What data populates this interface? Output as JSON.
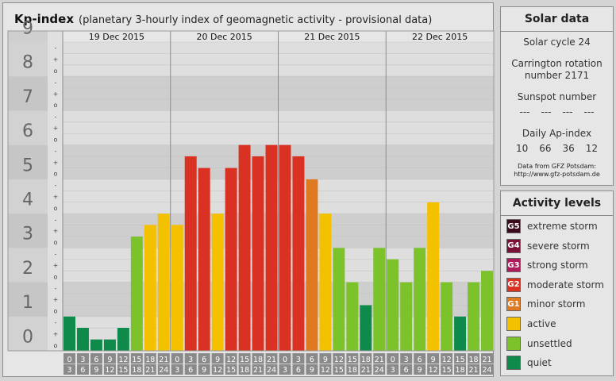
{
  "header": {
    "title": "Kp-index",
    "subtitle": "(planetary 3-hourly index of geomagnetic activity - provisional data)"
  },
  "chart_data": {
    "type": "bar",
    "ylim": [
      0,
      9
    ],
    "y_major_ticks": [
      "0",
      "1",
      "2",
      "3",
      "4",
      "5",
      "6",
      "7",
      "8",
      "9"
    ],
    "y_minor_ticks": [
      "o",
      "+",
      "-"
    ],
    "days": [
      "19 Dec 2015",
      "20 Dec 2015",
      "21 Dec 2015",
      "22 Dec 2015"
    ],
    "interval_labels": [
      [
        "0",
        "3"
      ],
      [
        "3",
        "6"
      ],
      [
        "6",
        "9"
      ],
      [
        "9",
        "12"
      ],
      [
        "12",
        "15"
      ],
      [
        "15",
        "18"
      ],
      [
        "18",
        "21"
      ],
      [
        "21",
        "24"
      ]
    ],
    "values": [
      1.0,
      0.67,
      0.33,
      0.33,
      0.67,
      3.33,
      3.67,
      4.0,
      3.67,
      5.67,
      5.33,
      4.0,
      5.33,
      6.0,
      5.67,
      6.0,
      6.0,
      5.67,
      5.0,
      4.0,
      3.0,
      2.0,
      1.33,
      3.0,
      2.67,
      2.0,
      3.0,
      4.33,
      2.0,
      1.0,
      2.0,
      2.33
    ],
    "bar_colors": [
      "#0e8a4a",
      "#0e8a4a",
      "#0e8a4a",
      "#0e8a4a",
      "#0e8a4a",
      "#7cc22b",
      "#f4c100",
      "#f4c100",
      "#f4c100",
      "#d93222",
      "#d93222",
      "#f4c100",
      "#d93222",
      "#d93222",
      "#d93222",
      "#d93222",
      "#d93222",
      "#d93222",
      "#e07a22",
      "#f4c100",
      "#7cc22b",
      "#7cc22b",
      "#0e8a4a",
      "#7cc22b",
      "#7cc22b",
      "#7cc22b",
      "#7cc22b",
      "#f4c100",
      "#7cc22b",
      "#0e8a4a",
      "#7cc22b",
      "#7cc22b"
    ],
    "grid": true
  },
  "solar": {
    "title": "Solar data",
    "cycle": "Solar cycle 24",
    "carrington_1": "Carrington rotation",
    "carrington_2": "number 2171",
    "sunspot_title": "Sunspot number",
    "sunspot_values": [
      "---",
      "---",
      "---",
      "---"
    ],
    "ap_title": "Daily Ap-index",
    "ap_values": [
      "10",
      "66",
      "36",
      "12"
    ],
    "note_1": "Data from GFZ Potsdam:",
    "note_2": "http://www.gfz-potsdam.de"
  },
  "levels": {
    "title": "Activity levels",
    "items": [
      {
        "badge": "G5",
        "label": "extreme storm",
        "color": "#3b0a1c"
      },
      {
        "badge": "G4",
        "label": "severe storm",
        "color": "#7a1038"
      },
      {
        "badge": "G3",
        "label": "strong storm",
        "color": "#b01a5a"
      },
      {
        "badge": "G2",
        "label": "moderate storm",
        "color": "#d93222"
      },
      {
        "badge": "G1",
        "label": "minor storm",
        "color": "#e07a22"
      },
      {
        "badge": "",
        "label": "active",
        "color": "#f4c100"
      },
      {
        "badge": "",
        "label": "unsettled",
        "color": "#7cc22b"
      },
      {
        "badge": "",
        "label": "quiet",
        "color": "#0e8a4a"
      }
    ]
  }
}
